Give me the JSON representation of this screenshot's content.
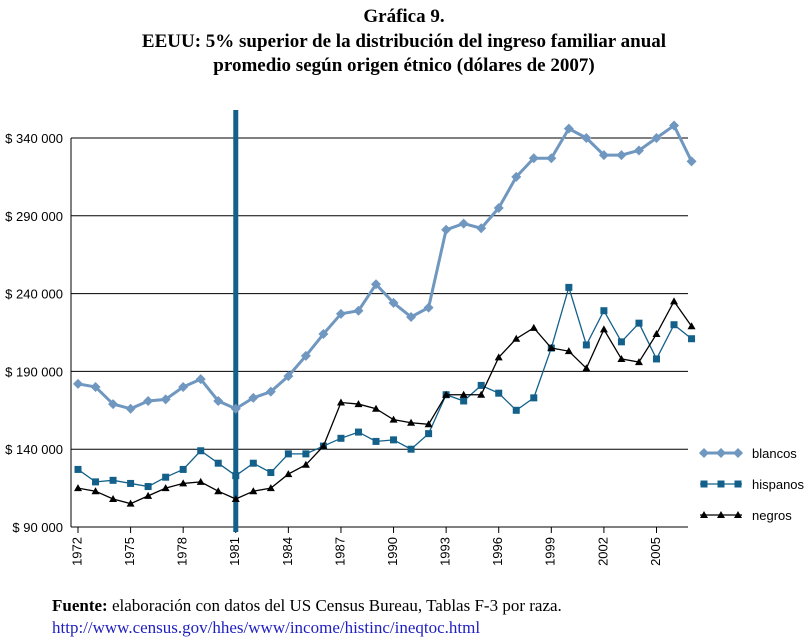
{
  "title": {
    "line1": "Gráfica 9.",
    "line2": "EEUU: 5% superior de la distribución del ingreso familiar anual",
    "line3": "promedio según origen étnico (dólares de 2007)"
  },
  "source": {
    "label": "Fuente:",
    "text": "elaboración con datos del US Census Bureau, Tablas F-3 por raza.",
    "url": "http://www.census.gov/hhes/www/income/histinc/ineqtoc.html"
  },
  "chart_data": {
    "type": "line",
    "x": [
      1972,
      1973,
      1974,
      1975,
      1976,
      1977,
      1978,
      1979,
      1980,
      1981,
      1982,
      1983,
      1984,
      1985,
      1986,
      1987,
      1988,
      1989,
      1990,
      1991,
      1992,
      1993,
      1994,
      1995,
      1996,
      1997,
      1998,
      1999,
      2000,
      2001,
      2002,
      2003,
      2004,
      2005,
      2006,
      2007
    ],
    "x_tick_labels": [
      "1972",
      "1975",
      "1978",
      "1981",
      "1984",
      "1987",
      "1990",
      "1993",
      "1996",
      "1999",
      "2002",
      "2005"
    ],
    "y_tick_labels": [
      "$ 90 000",
      "$ 140 000",
      "$ 190 000",
      "$ 240 000",
      "$ 290 000",
      "$ 340 000"
    ],
    "ylim": [
      90000,
      340000
    ],
    "vertical_marker": 1981,
    "series": [
      {
        "name": "blancos",
        "color": "#6f97c0",
        "marker": "diamond",
        "values": [
          182000,
          180000,
          169000,
          166000,
          171000,
          172000,
          180000,
          185000,
          171000,
          166000,
          173000,
          177000,
          187000,
          200000,
          214000,
          227000,
          229000,
          246000,
          234000,
          225000,
          231000,
          281000,
          285000,
          282000,
          295000,
          315000,
          327000,
          327000,
          346000,
          340000,
          329000,
          329000,
          332000,
          340000,
          348000,
          325000
        ]
      },
      {
        "name": "hispanos",
        "color": "#13608a",
        "marker": "square",
        "values": [
          127000,
          119000,
          120000,
          118000,
          116000,
          122000,
          127000,
          139000,
          131000,
          123000,
          131000,
          125000,
          137000,
          137000,
          142000,
          147000,
          151000,
          145000,
          146000,
          140000,
          150000,
          175000,
          171000,
          181000,
          176000,
          165000,
          173000,
          205000,
          244000,
          207000,
          229000,
          209000,
          221000,
          198000,
          220000,
          211000
        ]
      },
      {
        "name": "negros",
        "color": "#000000",
        "marker": "triangle",
        "values": [
          115000,
          113000,
          108000,
          105000,
          110000,
          115000,
          118000,
          119000,
          113000,
          108000,
          113000,
          115000,
          124000,
          130000,
          142000,
          170000,
          169000,
          166000,
          159000,
          157000,
          156000,
          175000,
          175000,
          175000,
          199000,
          211000,
          218000,
          205000,
          203000,
          192000,
          217000,
          198000,
          196000,
          214000,
          235000,
          219000
        ]
      }
    ],
    "legend": [
      "blancos",
      "hispanos",
      "negros"
    ],
    "legend_position": "right"
  }
}
